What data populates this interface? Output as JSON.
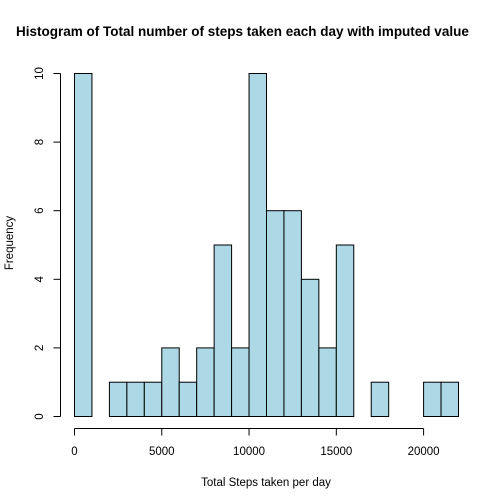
{
  "chart_data": {
    "type": "bar",
    "title": "Histogram of Total number of steps taken each day with imputed value",
    "xlabel": "Total Steps taken per day",
    "ylabel": "Frequency",
    "bar_color": "#ADD8E6",
    "border_color": "#000000",
    "xlim": [
      0,
      22000
    ],
    "ylim": [
      0,
      10
    ],
    "x_ticks": [
      0,
      5000,
      10000,
      15000,
      20000
    ],
    "y_ticks": [
      0,
      2,
      4,
      6,
      8,
      10
    ],
    "bins": [
      {
        "start": 0,
        "end": 1000,
        "count": 10
      },
      {
        "start": 1000,
        "end": 2000,
        "count": 0
      },
      {
        "start": 2000,
        "end": 3000,
        "count": 1
      },
      {
        "start": 3000,
        "end": 4000,
        "count": 1
      },
      {
        "start": 4000,
        "end": 5000,
        "count": 1
      },
      {
        "start": 5000,
        "end": 6000,
        "count": 2
      },
      {
        "start": 6000,
        "end": 7000,
        "count": 1
      },
      {
        "start": 7000,
        "end": 8000,
        "count": 2
      },
      {
        "start": 8000,
        "end": 9000,
        "count": 5
      },
      {
        "start": 9000,
        "end": 10000,
        "count": 2
      },
      {
        "start": 10000,
        "end": 11000,
        "count": 10
      },
      {
        "start": 11000,
        "end": 12000,
        "count": 6
      },
      {
        "start": 12000,
        "end": 13000,
        "count": 6
      },
      {
        "start": 13000,
        "end": 14000,
        "count": 4
      },
      {
        "start": 14000,
        "end": 15000,
        "count": 2
      },
      {
        "start": 15000,
        "end": 16000,
        "count": 5
      },
      {
        "start": 16000,
        "end": 17000,
        "count": 0
      },
      {
        "start": 17000,
        "end": 18000,
        "count": 1
      },
      {
        "start": 18000,
        "end": 19000,
        "count": 0
      },
      {
        "start": 19000,
        "end": 20000,
        "count": 0
      },
      {
        "start": 20000,
        "end": 21000,
        "count": 1
      },
      {
        "start": 21000,
        "end": 22000,
        "count": 1
      }
    ]
  }
}
